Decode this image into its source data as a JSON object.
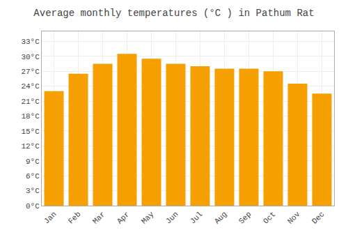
{
  "chart_data": {
    "type": "bar",
    "title": "Average monthly temperatures (°C ) in Pathum Rat",
    "categories": [
      "Jan",
      "Feb",
      "Mar",
      "Apr",
      "May",
      "Jun",
      "Jul",
      "Aug",
      "Sep",
      "Oct",
      "Nov",
      "Dec"
    ],
    "values": [
      23.0,
      26.5,
      28.5,
      30.5,
      29.5,
      28.5,
      28.0,
      27.5,
      27.5,
      27.0,
      24.5,
      22.5
    ],
    "color": "#F5A000",
    "ylim": [
      0,
      35
    ],
    "yticks": [
      {
        "value": 0,
        "label": "0°C"
      },
      {
        "value": 3,
        "label": "3°C"
      },
      {
        "value": 6,
        "label": "6°C"
      },
      {
        "value": 9,
        "label": "9°C"
      },
      {
        "value": 12,
        "label": "12°C"
      },
      {
        "value": 15,
        "label": "15°C"
      },
      {
        "value": 18,
        "label": "18°C"
      },
      {
        "value": 21,
        "label": "21°C"
      },
      {
        "value": 24,
        "label": "24°C"
      },
      {
        "value": 27,
        "label": "27°C"
      },
      {
        "value": 30,
        "label": "30°C"
      },
      {
        "value": 33,
        "label": "33°C"
      }
    ],
    "grid": true
  }
}
